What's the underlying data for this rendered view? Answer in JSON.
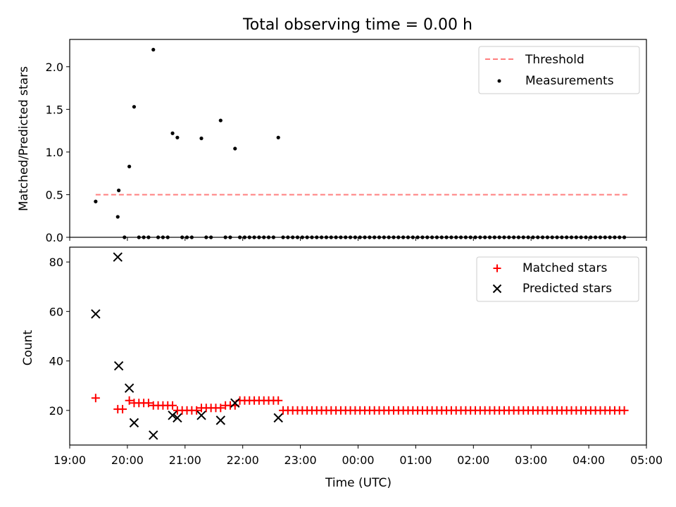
{
  "figure": {
    "title": "Total observing time = 0.00 h",
    "xlabel": "Time (UTC)"
  },
  "colors": {
    "threshold": "#ff7f7f",
    "measurements": "#000000",
    "matched": "#ff0000",
    "predicted": "#000000"
  },
  "chart_data": [
    {
      "type": "scatter",
      "panel": "top",
      "ylabel": "Matched/Predicted stars",
      "ylim": [
        0,
        2.32
      ],
      "yticks": [
        0.0,
        0.5,
        1.0,
        1.5,
        2.0
      ],
      "ytick_labels": [
        "0.0",
        "0.5",
        "1.0",
        "1.5",
        "2.0"
      ],
      "xlim": [
        "19:00",
        "05:00"
      ],
      "xticks": [
        "19:00",
        "20:00",
        "21:00",
        "22:00",
        "23:00",
        "00:00",
        "01:00",
        "02:00",
        "03:00",
        "04:00",
        "05:00"
      ],
      "legend": {
        "position": "top-right",
        "threshold_label": "Threshold",
        "measurements_label": "Measurements"
      },
      "threshold": {
        "y": 0.5,
        "x_start": "19:27",
        "x_end": "04:41"
      },
      "series": [
        {
          "name": "Measurements",
          "points": [
            [
              "19:27",
              0.42
            ],
            [
              "19:50",
              0.24
            ],
            [
              "19:51",
              0.55
            ],
            [
              "19:57",
              0.0
            ],
            [
              "20:02",
              0.83
            ],
            [
              "20:07",
              1.53
            ],
            [
              "20:27",
              2.2
            ],
            [
              "20:47",
              1.22
            ],
            [
              "20:52",
              1.17
            ],
            [
              "21:17",
              1.16
            ],
            [
              "21:37",
              1.37
            ],
            [
              "21:52",
              1.04
            ],
            [
              "22:37",
              1.17
            ],
            [
              "20:12",
              0.0
            ],
            [
              "20:17",
              0.0
            ],
            [
              "20:22",
              0.0
            ],
            [
              "20:32",
              0.0
            ],
            [
              "20:37",
              0.0
            ],
            [
              "20:42",
              0.0
            ],
            [
              "20:57",
              0.0
            ],
            [
              "21:02",
              0.0
            ],
            [
              "21:07",
              0.0
            ],
            [
              "21:22",
              0.0
            ],
            [
              "21:27",
              0.0
            ],
            [
              "21:42",
              0.0
            ],
            [
              "21:47",
              0.0
            ],
            [
              "21:57",
              0.0
            ],
            [
              "22:02",
              0.0
            ],
            [
              "22:07",
              0.0
            ],
            [
              "22:12",
              0.0
            ],
            [
              "22:17",
              0.0
            ],
            [
              "22:22",
              0.0
            ],
            [
              "22:27",
              0.0
            ],
            [
              "22:32",
              0.0
            ]
          ],
          "zero_run": {
            "start": "22:42",
            "end": "04:41",
            "step_min": 5,
            "y": 0.0
          }
        }
      ]
    },
    {
      "type": "scatter",
      "panel": "bottom",
      "ylabel": "Count",
      "ylim": [
        6,
        86
      ],
      "yticks": [
        20,
        40,
        60,
        80
      ],
      "ytick_labels": [
        "20",
        "40",
        "60",
        "80"
      ],
      "xlim": [
        "19:00",
        "05:00"
      ],
      "xticks": [
        "19:00",
        "20:00",
        "21:00",
        "22:00",
        "23:00",
        "00:00",
        "01:00",
        "02:00",
        "03:00",
        "04:00",
        "05:00"
      ],
      "xtick_labels": [
        "19:00",
        "20:00",
        "21:00",
        "22:00",
        "23:00",
        "00:00",
        "01:00",
        "02:00",
        "03:00",
        "04:00",
        "05:00"
      ],
      "legend": {
        "position": "top-right",
        "matched_label": "Matched stars",
        "predicted_label": "Predicted stars"
      },
      "series": [
        {
          "name": "Matched stars",
          "marker": "+",
          "segments": [
            {
              "start": "19:27",
              "end": "19:27",
              "y": 25
            },
            {
              "start": "19:50",
              "end": "19:55",
              "y": 20.5
            },
            {
              "start": "20:02",
              "end": "20:02",
              "y": 24
            },
            {
              "start": "20:07",
              "end": "20:22",
              "y": 23
            },
            {
              "start": "20:27",
              "end": "20:47",
              "y": 22
            },
            {
              "start": "20:52",
              "end": "21:12",
              "y": 20
            },
            {
              "start": "21:17",
              "end": "21:37",
              "y": 21
            },
            {
              "start": "21:42",
              "end": "21:52",
              "y": 22
            },
            {
              "start": "21:57",
              "end": "22:37",
              "y": 24
            },
            {
              "start": "22:42",
              "end": "04:41",
              "y": 20
            }
          ],
          "step_min": 5
        },
        {
          "name": "Predicted stars",
          "marker": "x",
          "points": [
            [
              "19:27",
              59
            ],
            [
              "19:50",
              82
            ],
            [
              "19:51",
              38
            ],
            [
              "20:02",
              29
            ],
            [
              "20:07",
              15
            ],
            [
              "20:27",
              10
            ],
            [
              "20:47",
              18
            ],
            [
              "20:52",
              17
            ],
            [
              "21:17",
              18
            ],
            [
              "21:37",
              16
            ],
            [
              "21:52",
              23
            ],
            [
              "22:37",
              17
            ]
          ]
        }
      ]
    }
  ]
}
